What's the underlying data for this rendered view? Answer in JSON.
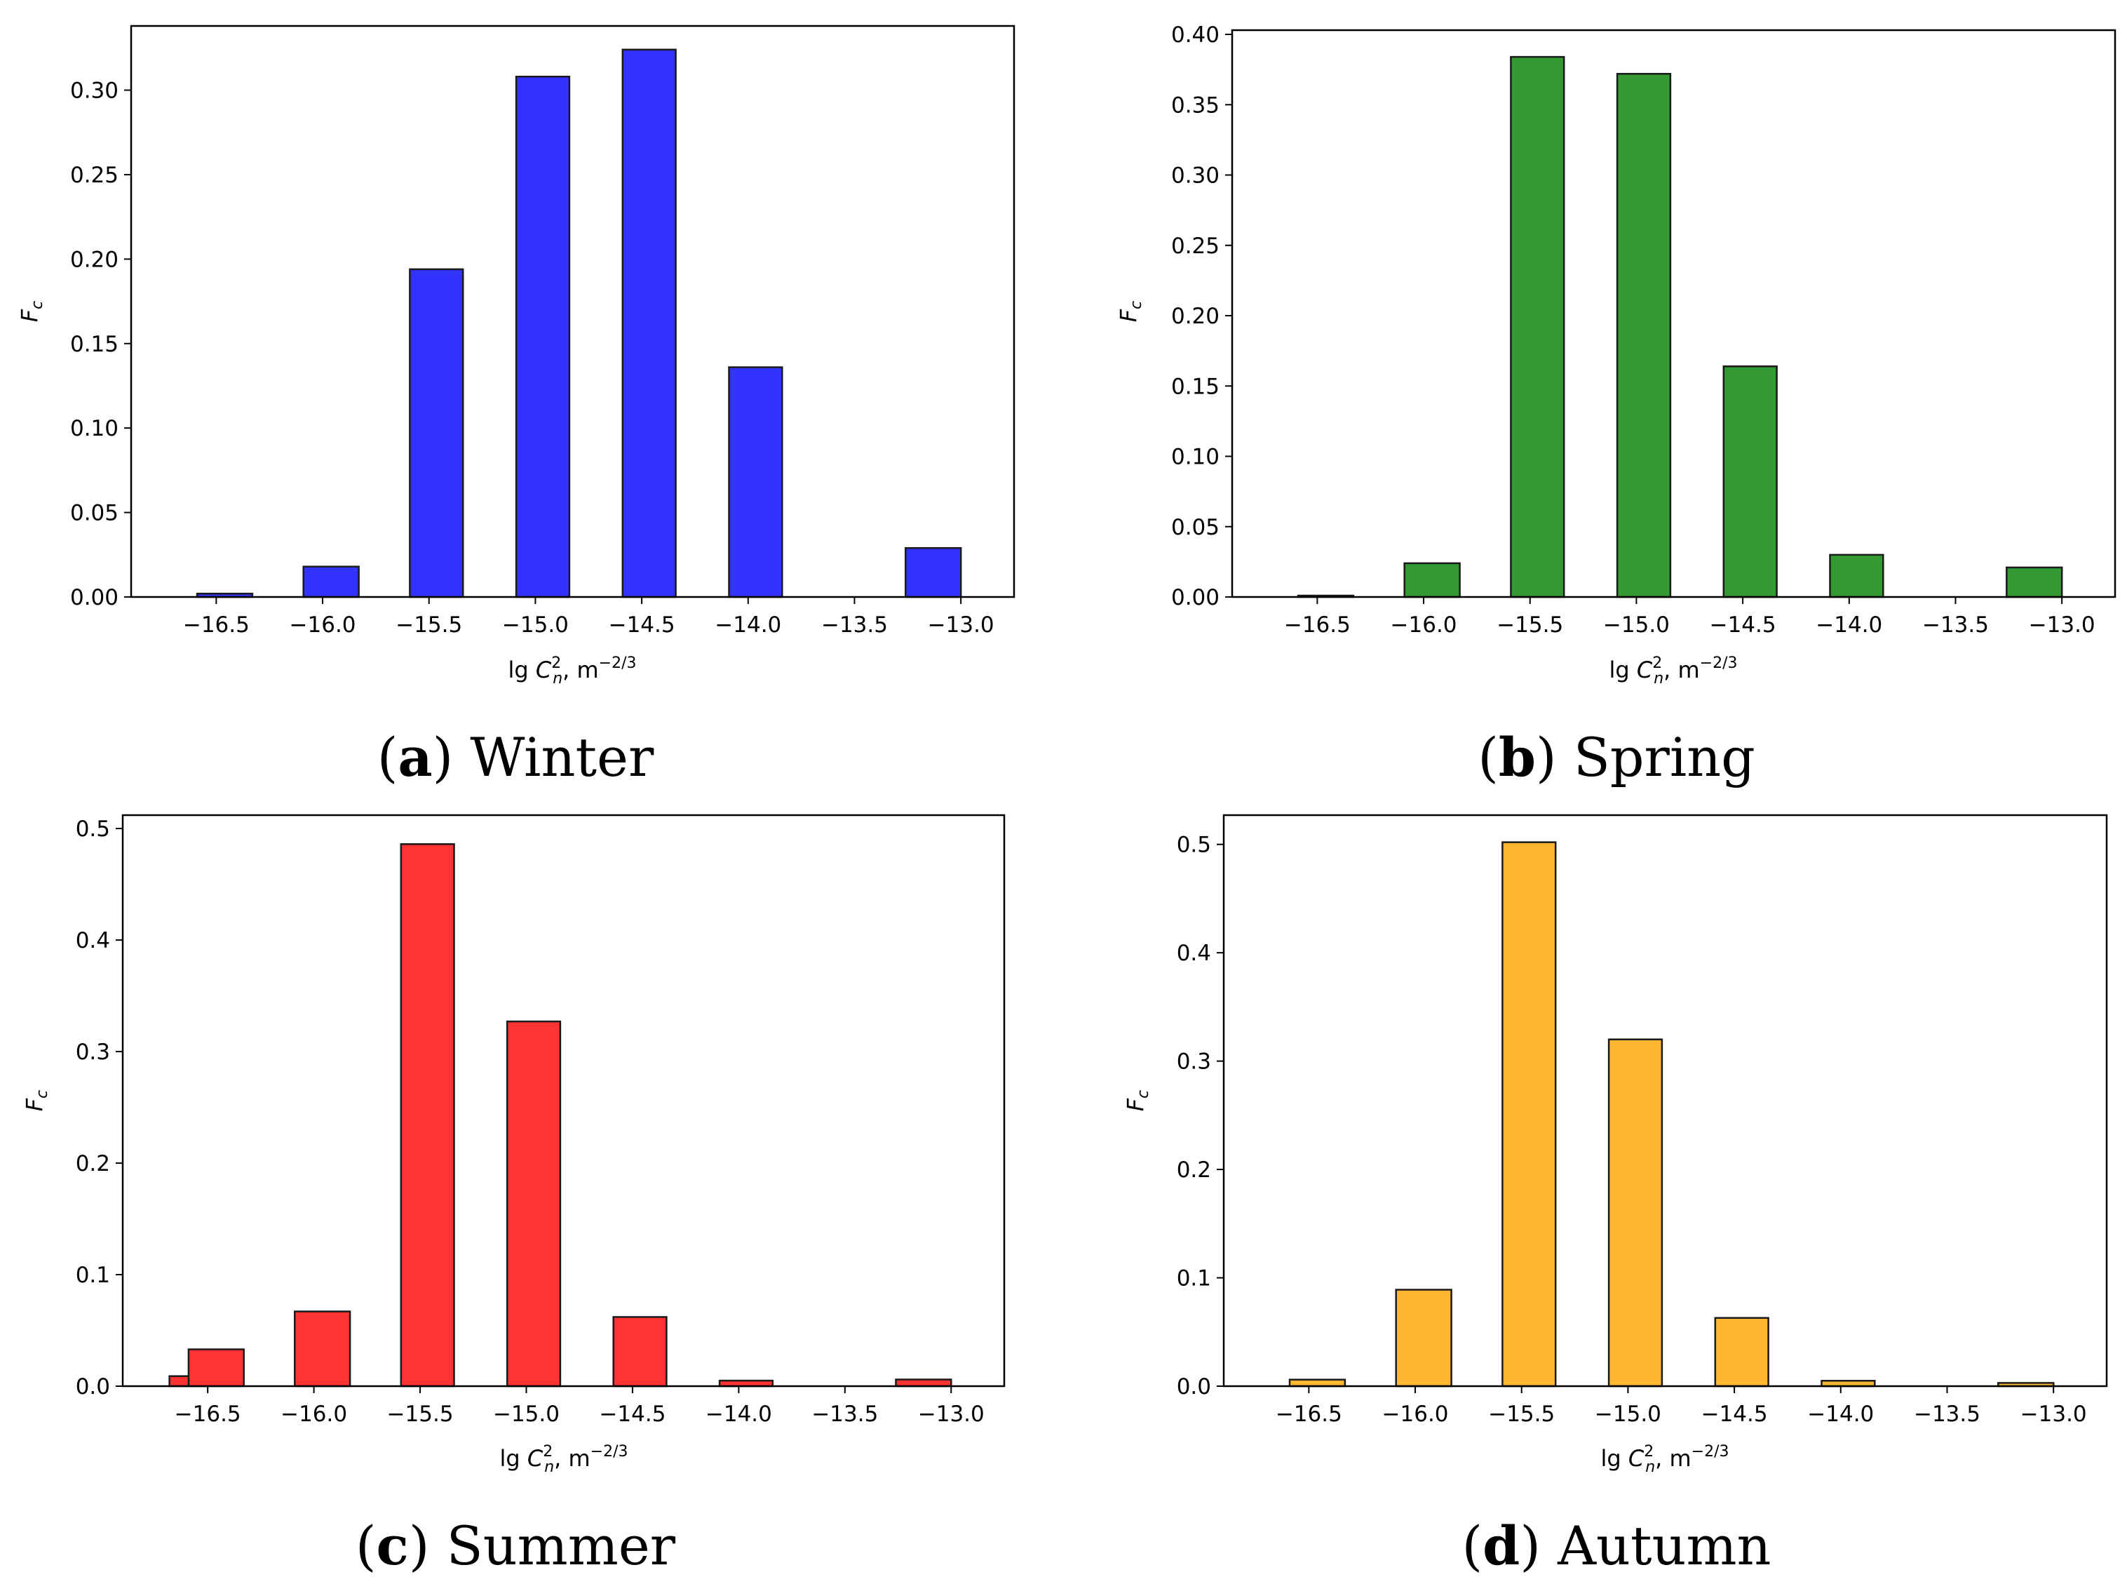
{
  "chart_data": [
    {
      "type": "bar",
      "panel": "a",
      "caption_letter": "a",
      "caption_text": "Winter",
      "ylabel_main": "F",
      "ylabel_sub": "c",
      "xlabel_prefix": "lg ",
      "xlabel_var": "C",
      "xlabel_sup": "2",
      "xlabel_sub": "n",
      "xlabel_unit": ", m",
      "xlabel_unit_sup": "−2/3",
      "color": "#3333ff",
      "xlim": [
        -16.9,
        -12.75
      ],
      "ylim": [
        0,
        0.338
      ],
      "xticks": [
        -16.5,
        -16.0,
        -15.5,
        -15.0,
        -14.5,
        -14.0,
        -13.5,
        -13.0
      ],
      "xtick_labels": [
        "−16.5",
        "−16.0",
        "−15.5",
        "−15.0",
        "−14.5",
        "−14.0",
        "−13.5",
        "−13.0"
      ],
      "yticks": [
        0.0,
        0.05,
        0.1,
        0.15,
        0.2,
        0.25,
        0.3
      ],
      "ytick_labels": [
        "0.00",
        "0.05",
        "0.10",
        "0.15",
        "0.20",
        "0.25",
        "0.30"
      ],
      "bars": [
        {
          "x0": -16.59,
          "x1": -16.33,
          "value": 0.002
        },
        {
          "x0": -16.09,
          "x1": -15.83,
          "value": 0.018
        },
        {
          "x0": -15.59,
          "x1": -15.34,
          "value": 0.194
        },
        {
          "x0": -15.09,
          "x1": -14.84,
          "value": 0.308
        },
        {
          "x0": -14.59,
          "x1": -14.34,
          "value": 0.324
        },
        {
          "x0": -14.09,
          "x1": -13.84,
          "value": 0.136
        },
        {
          "x0": -13.26,
          "x1": -13.0,
          "value": 0.029
        }
      ]
    },
    {
      "type": "bar",
      "panel": "b",
      "caption_letter": "b",
      "caption_text": "Spring",
      "ylabel_main": "F",
      "ylabel_sub": "c",
      "xlabel_prefix": "lg ",
      "xlabel_var": "C",
      "xlabel_sup": "2",
      "xlabel_sub": "n",
      "xlabel_unit": ", m",
      "xlabel_unit_sup": "−2/3",
      "color": "#339933",
      "xlim": [
        -16.9,
        -12.75
      ],
      "ylim": [
        0,
        0.403
      ],
      "xticks": [
        -16.5,
        -16.0,
        -15.5,
        -15.0,
        -14.5,
        -14.0,
        -13.5,
        -13.0
      ],
      "xtick_labels": [
        "−16.5",
        "−16.0",
        "−15.5",
        "−15.0",
        "−14.5",
        "−14.0",
        "−13.5",
        "−13.0"
      ],
      "yticks": [
        0.0,
        0.05,
        0.1,
        0.15,
        0.2,
        0.25,
        0.3,
        0.35,
        0.4
      ],
      "ytick_labels": [
        "0.00",
        "0.05",
        "0.10",
        "0.15",
        "0.20",
        "0.25",
        "0.30",
        "0.35",
        "0.40"
      ],
      "bars": [
        {
          "x0": -16.59,
          "x1": -16.33,
          "value": 0.001
        },
        {
          "x0": -16.09,
          "x1": -15.83,
          "value": 0.024
        },
        {
          "x0": -15.59,
          "x1": -15.34,
          "value": 0.384
        },
        {
          "x0": -15.09,
          "x1": -14.84,
          "value": 0.372
        },
        {
          "x0": -14.59,
          "x1": -14.34,
          "value": 0.164
        },
        {
          "x0": -14.09,
          "x1": -13.84,
          "value": 0.03
        },
        {
          "x0": -13.26,
          "x1": -13.0,
          "value": 0.021
        }
      ]
    },
    {
      "type": "bar",
      "panel": "c",
      "caption_letter": "c",
      "caption_text": "Summer",
      "ylabel_main": "F",
      "ylabel_sub": "c",
      "xlabel_prefix": "lg ",
      "xlabel_var": "C",
      "xlabel_sup": "2",
      "xlabel_sub": "n",
      "xlabel_unit": ", m",
      "xlabel_unit_sup": "−2/3",
      "color": "#ff3333",
      "xlim": [
        -16.9,
        -12.75
      ],
      "ylim": [
        0,
        0.512
      ],
      "xticks": [
        -16.5,
        -16.0,
        -15.5,
        -15.0,
        -14.5,
        -14.0,
        -13.5,
        -13.0
      ],
      "xtick_labels": [
        "−16.5",
        "−16.0",
        "−15.5",
        "−15.0",
        "−14.5",
        "−14.0",
        "−13.5",
        "−13.0"
      ],
      "yticks": [
        0.0,
        0.1,
        0.2,
        0.3,
        0.4,
        0.5
      ],
      "ytick_labels": [
        "0.0",
        "0.1",
        "0.2",
        "0.3",
        "0.4",
        "0.5"
      ],
      "bars": [
        {
          "x0": -16.68,
          "x1": -16.51,
          "value": 0.009
        },
        {
          "x0": -16.59,
          "x1": -16.33,
          "value": 0.033
        },
        {
          "x0": -16.09,
          "x1": -15.83,
          "value": 0.067
        },
        {
          "x0": -15.59,
          "x1": -15.34,
          "value": 0.486
        },
        {
          "x0": -15.09,
          "x1": -14.84,
          "value": 0.327
        },
        {
          "x0": -14.59,
          "x1": -14.34,
          "value": 0.062
        },
        {
          "x0": -14.09,
          "x1": -13.84,
          "value": 0.005
        },
        {
          "x0": -13.26,
          "x1": -13.0,
          "value": 0.006
        }
      ]
    },
    {
      "type": "bar",
      "panel": "d",
      "caption_letter": "d",
      "caption_text": "Autumn",
      "ylabel_main": "F",
      "ylabel_sub": "c",
      "xlabel_prefix": "lg ",
      "xlabel_var": "C",
      "xlabel_sup": "2",
      "xlabel_sub": "n",
      "xlabel_unit": ", m",
      "xlabel_unit_sup": "−2/3",
      "color": "#ffb733",
      "xlim": [
        -16.9,
        -12.75
      ],
      "ylim": [
        0,
        0.527
      ],
      "xticks": [
        -16.5,
        -16.0,
        -15.5,
        -15.0,
        -14.5,
        -14.0,
        -13.5,
        -13.0
      ],
      "xtick_labels": [
        "−16.5",
        "−16.0",
        "−15.5",
        "−15.0",
        "−14.5",
        "−14.0",
        "−13.5",
        "−13.0"
      ],
      "yticks": [
        0.0,
        0.1,
        0.2,
        0.3,
        0.4,
        0.5
      ],
      "ytick_labels": [
        "0.0",
        "0.1",
        "0.2",
        "0.3",
        "0.4",
        "0.5"
      ],
      "bars": [
        {
          "x0": -16.59,
          "x1": -16.33,
          "value": 0.006
        },
        {
          "x0": -16.09,
          "x1": -15.83,
          "value": 0.089
        },
        {
          "x0": -15.59,
          "x1": -15.34,
          "value": 0.502
        },
        {
          "x0": -15.09,
          "x1": -14.84,
          "value": 0.32
        },
        {
          "x0": -14.59,
          "x1": -14.34,
          "value": 0.063
        },
        {
          "x0": -14.09,
          "x1": -13.84,
          "value": 0.005
        },
        {
          "x0": -13.26,
          "x1": -13.0,
          "value": 0.003
        }
      ]
    }
  ]
}
